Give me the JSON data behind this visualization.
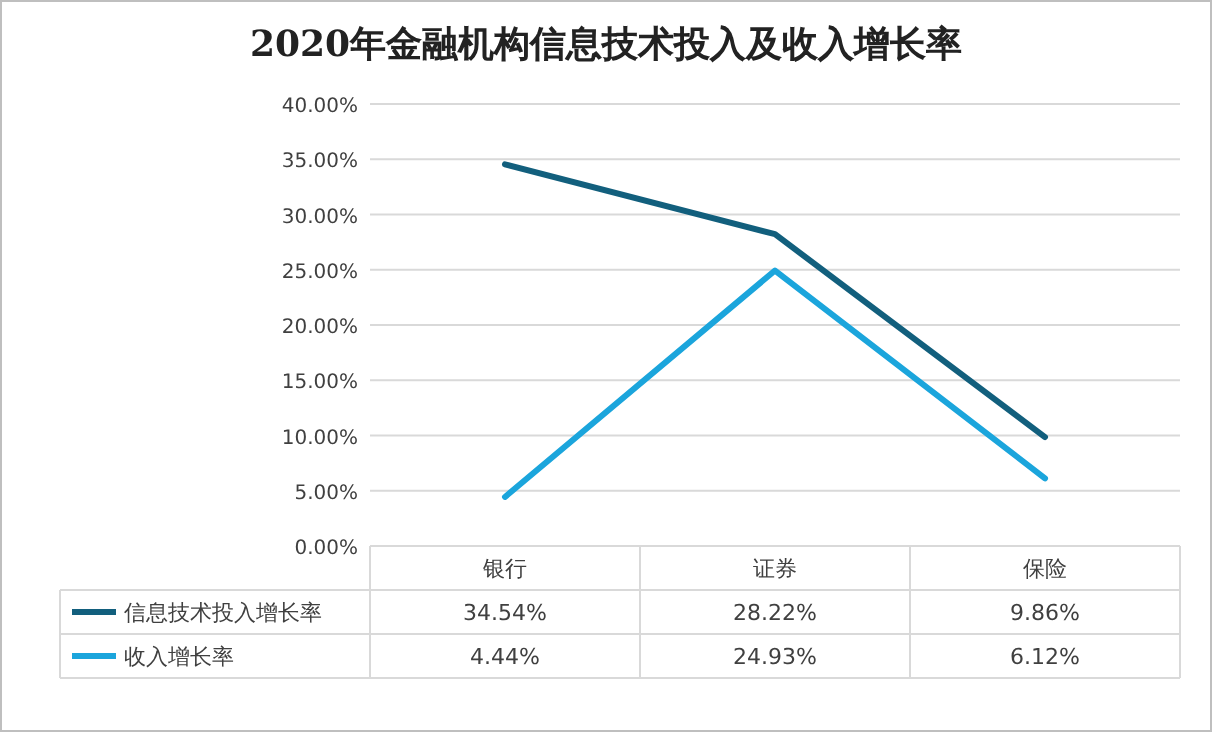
{
  "chart_data": {
    "type": "line",
    "title": "2020年金融机构信息技术投入及收入增长率",
    "categories": [
      "银行",
      "证券",
      "保险"
    ],
    "series": [
      {
        "name": "信息技术投入增长率",
        "color": "#125f7d",
        "values": [
          34.54,
          28.22,
          9.86
        ],
        "value_labels": [
          "34.54%",
          "28.22%",
          "9.86%"
        ]
      },
      {
        "name": "收入增长率",
        "color": "#1ba5dc",
        "values": [
          4.44,
          24.93,
          6.12
        ],
        "value_labels": [
          "4.44%",
          "24.93%",
          "6.12%"
        ]
      }
    ],
    "ylim": [
      0,
      40
    ],
    "yticks": [
      {
        "value": 0,
        "label": "0.00%"
      },
      {
        "value": 5,
        "label": "5.00%"
      },
      {
        "value": 10,
        "label": "10.00%"
      },
      {
        "value": 15,
        "label": "15.00%"
      },
      {
        "value": 20,
        "label": "20.00%"
      },
      {
        "value": 25,
        "label": "25.00%"
      },
      {
        "value": 30,
        "label": "30.00%"
      },
      {
        "value": 35,
        "label": "35.00%"
      },
      {
        "value": 40,
        "label": "40.00%"
      }
    ],
    "grid": "y",
    "legend": "bottom",
    "line_style": "solid",
    "marker": "none"
  }
}
